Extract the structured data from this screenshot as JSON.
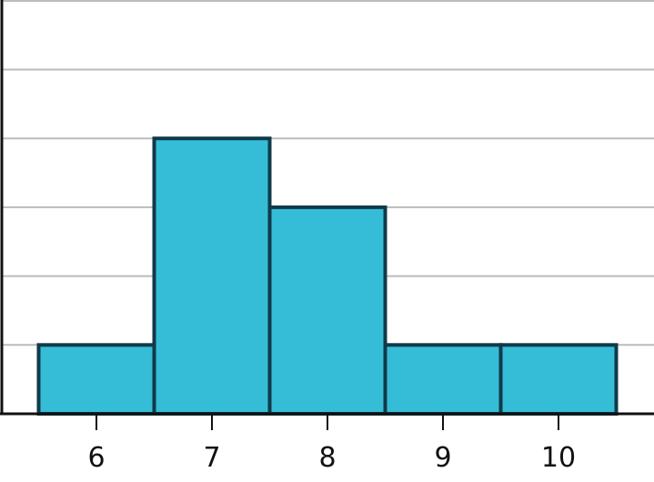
{
  "chart_data": {
    "type": "bar",
    "subtype": "histogram",
    "categories": [
      "6",
      "7",
      "8",
      "9",
      "10"
    ],
    "x": [
      6,
      7,
      8,
      9,
      10
    ],
    "values": [
      1,
      4,
      3,
      1,
      1
    ],
    "title": "",
    "xlabel": "",
    "ylabel": "",
    "xlim": [
      5.2,
      10.8
    ],
    "ylim": [
      0,
      6
    ],
    "y_grid_step": 1,
    "grid": true,
    "y_tick_labels_shown": false,
    "colors": {
      "bar_fill": "#35bdd8",
      "bar_stroke": "#0f3a4a",
      "grid": "#bbbbbb",
      "axis": "#111111"
    }
  }
}
